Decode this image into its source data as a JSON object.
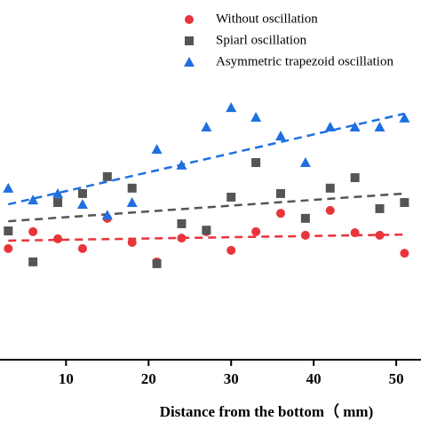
{
  "chart_data": {
    "type": "scatter",
    "x_label": "Distance from the bottom（ mm)",
    "xlim": [
      2,
      53
    ],
    "ylim": [
      0,
      100
    ],
    "xticks": [
      10,
      20,
      30,
      40,
      50
    ],
    "trend_x": [
      3,
      51
    ],
    "series": [
      {
        "name": "Without oscillation",
        "color": "#e8343a",
        "marker": "circle",
        "x": [
          3,
          6,
          9,
          12,
          15,
          18,
          21,
          24,
          27,
          30,
          33,
          36,
          39,
          42,
          45,
          48,
          51
        ],
        "values": [
          30.9,
          35.6,
          33.6,
          30.9,
          39.3,
          32.6,
          27.2,
          33.8,
          35.6,
          30.4,
          35.6,
          40.7,
          34.6,
          41.5,
          35.3,
          34.6,
          29.6
        ],
        "trend": [
          33.1,
          34.8
        ]
      },
      {
        "name": "Spiarl oscillation",
        "color": "#555555",
        "marker": "square",
        "x": [
          3,
          6,
          9,
          12,
          15,
          18,
          21,
          24,
          27,
          30,
          33,
          36,
          39,
          42,
          45,
          48,
          51
        ],
        "values": [
          35.8,
          27.2,
          43.7,
          46.2,
          50.9,
          47.7,
          26.7,
          37.8,
          36.0,
          45.2,
          54.8,
          46.2,
          39.3,
          47.7,
          50.6,
          42.0,
          43.7
        ],
        "trend": [
          38.5,
          46.2
        ]
      },
      {
        "name": "Asymmetric trapezoid oscillation",
        "color": "#1f6fe0",
        "marker": "triangle",
        "x": [
          3,
          6,
          9,
          12,
          15,
          18,
          21,
          24,
          27,
          30,
          33,
          36,
          39,
          42,
          45,
          48,
          51
        ],
        "values": [
          47.7,
          44.4,
          46.2,
          43.2,
          40.2,
          43.7,
          58.5,
          54.1,
          64.7,
          70.1,
          67.4,
          62.2,
          54.8,
          64.7,
          64.7,
          64.7,
          67.2
        ],
        "trend": [
          43.2,
          68.4
        ]
      }
    ]
  }
}
